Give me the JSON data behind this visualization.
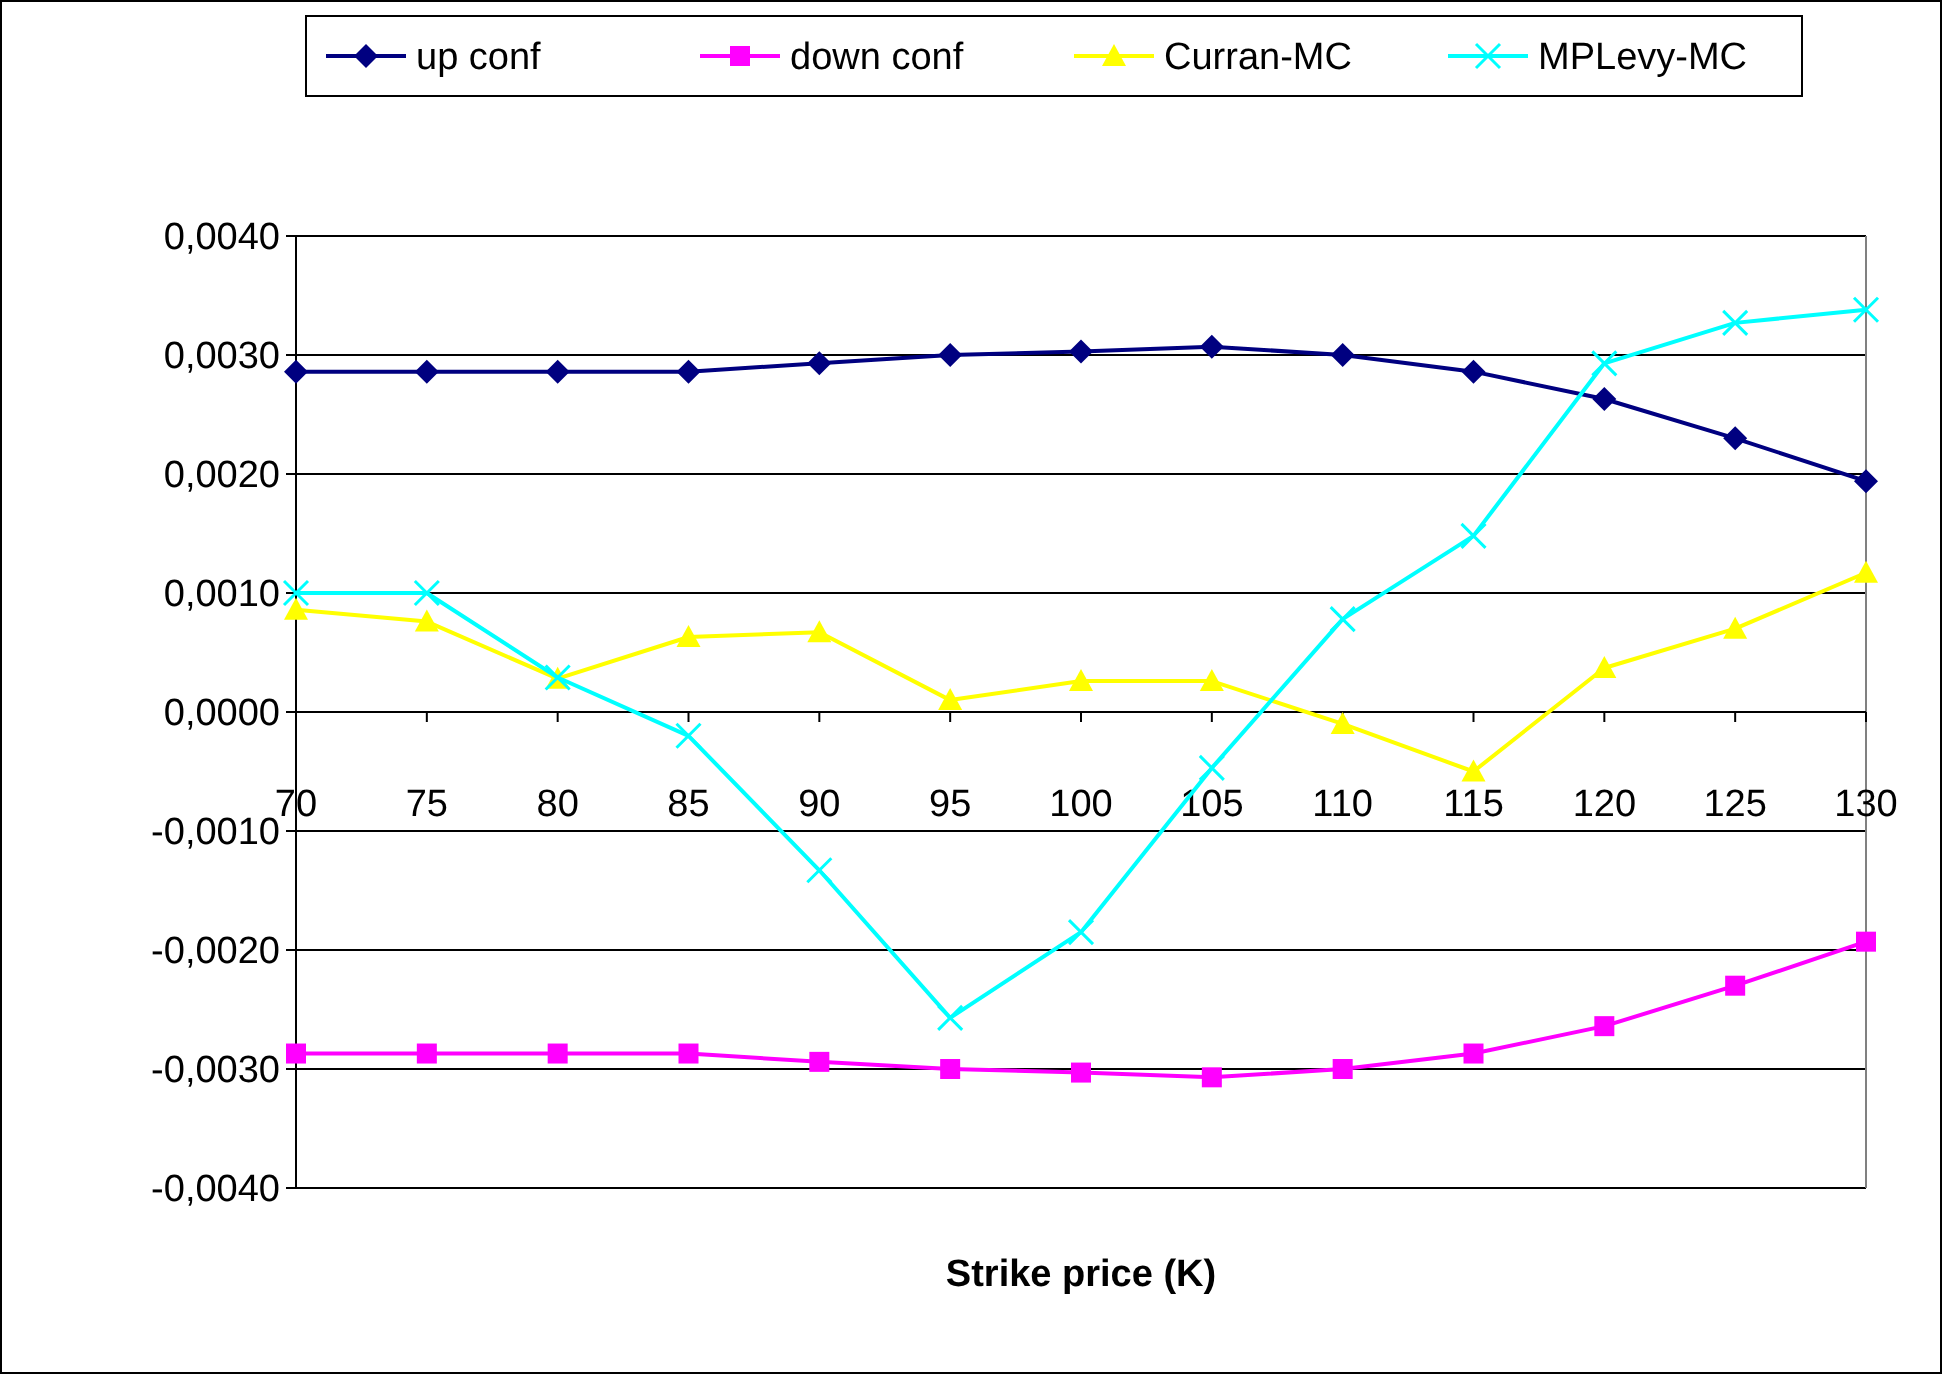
{
  "chart_data": {
    "type": "line",
    "xlabel": "Strike price (K)",
    "categories": [
      "70",
      "75",
      "80",
      "85",
      "90",
      "95",
      "100",
      "105",
      "110",
      "115",
      "120",
      "125",
      "130"
    ],
    "ylim": [
      -0.004,
      0.004
    ],
    "yticks": [
      {
        "value": -0.004,
        "label": "-0,0040"
      },
      {
        "value": -0.003,
        "label": "-0,0030"
      },
      {
        "value": -0.002,
        "label": "-0,0020"
      },
      {
        "value": -0.001,
        "label": "-0,0010"
      },
      {
        "value": 0,
        "label": "0,0000"
      },
      {
        "value": 0.001,
        "label": "0,0010"
      },
      {
        "value": 0.002,
        "label": "0,0020"
      },
      {
        "value": 0.003,
        "label": "0,0030"
      },
      {
        "value": 0.004,
        "label": "0,0040"
      }
    ],
    "grid": "y",
    "legend": "top",
    "series": [
      {
        "name": "up conf",
        "color": "#000080",
        "marker": "diamond",
        "values": [
          0.00286,
          0.00286,
          0.00286,
          0.00286,
          0.00293,
          0.003,
          0.00303,
          0.00307,
          0.003,
          0.00286,
          0.00263,
          0.0023,
          0.00194
        ]
      },
      {
        "name": "down conf",
        "color": "#ff00ff",
        "marker": "square",
        "values": [
          -0.00287,
          -0.00287,
          -0.00287,
          -0.00287,
          -0.00294,
          -0.003,
          -0.00303,
          -0.00307,
          -0.003,
          -0.00287,
          -0.00264,
          -0.0023,
          -0.00193
        ]
      },
      {
        "name": "Curran-MC",
        "color": "#ffff00",
        "marker": "triangle",
        "values": [
          0.00086,
          0.00076,
          0.00028,
          0.00063,
          0.00067,
          0.0001,
          0.00026,
          0.00026,
          -0.0001,
          -0.0005,
          0.00037,
          0.0007,
          0.00117
        ]
      },
      {
        "name": "MPLevy-MC",
        "color": "#00ffff",
        "marker": "cross",
        "values": [
          0.001,
          0.001,
          0.00029,
          -0.0002,
          -0.00133,
          -0.00257,
          -0.00185,
          -0.00047,
          0.00078,
          0.00148,
          0.00293,
          0.00327,
          0.00338
        ]
      }
    ]
  }
}
